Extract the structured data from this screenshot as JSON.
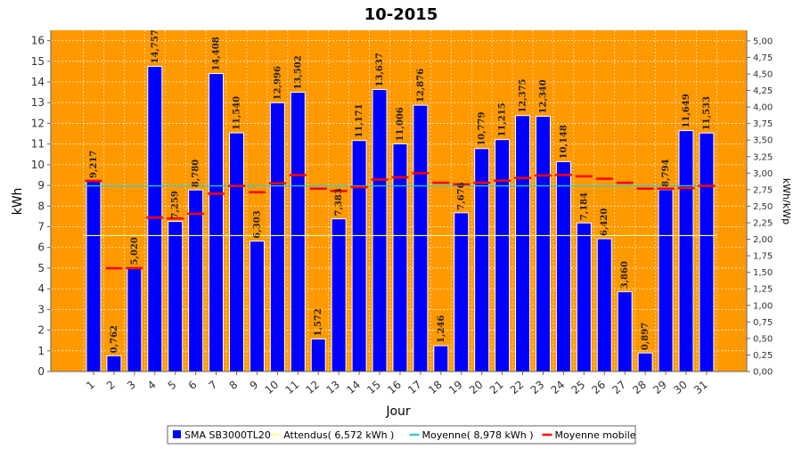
{
  "chart_data": {
    "type": "bar",
    "title": "10-2015",
    "xlabel": "Jour",
    "ylabel": "kWh",
    "y2label": "kWh/kWp",
    "ylim": [
      0,
      16.5
    ],
    "y2lim": [
      0,
      5.16
    ],
    "y_ticks": [
      "0",
      "1",
      "2",
      "3",
      "4",
      "5",
      "6",
      "7",
      "8",
      "9",
      "10",
      "11",
      "12",
      "13",
      "14",
      "15",
      "16"
    ],
    "y2_ticks": [
      "0,00",
      "0,25",
      "0,50",
      "0,75",
      "1,00",
      "1,25",
      "1,50",
      "1,75",
      "2,00",
      "2,25",
      "2,50",
      "2,75",
      "3,00",
      "3,25",
      "3,50",
      "3,75",
      "4,00",
      "4,25",
      "4,50",
      "4,75",
      "5,00"
    ],
    "categories": [
      "1",
      "2",
      "3",
      "4",
      "5",
      "6",
      "7",
      "8",
      "9",
      "10",
      "11",
      "12",
      "13",
      "14",
      "15",
      "16",
      "17",
      "18",
      "19",
      "20",
      "21",
      "22",
      "23",
      "24",
      "25",
      "26",
      "27",
      "28",
      "29",
      "30",
      "31"
    ],
    "plot_background": "#FF9900",
    "grid": true,
    "legend_position": "bottom",
    "series": [
      {
        "name": "SMA SB3000TL20",
        "kind": "bar",
        "color": "#0000FF",
        "values": [
          9.217,
          0.762,
          5.02,
          14.757,
          7.259,
          8.78,
          14.408,
          11.54,
          6.303,
          12.996,
          13.502,
          1.572,
          7.383,
          11.171,
          13.637,
          11.006,
          12.876,
          1.246,
          7.676,
          10.779,
          11.215,
          12.375,
          12.34,
          10.148,
          7.184,
          6.42,
          3.86,
          0.897,
          8.794,
          11.649,
          11.533
        ],
        "labels": [
          "9,217",
          "0,762",
          "5,020",
          "14,757",
          "7,259",
          "8,780",
          "14,408",
          "11,540",
          "6,303",
          "12,996",
          "13,502",
          "1,572",
          "7,383",
          "11,171",
          "13,637",
          "11,006",
          "12,876",
          "1,246",
          "7,676",
          "10,779",
          "11,215",
          "12,375",
          "12,340",
          "10,148",
          "7,184",
          "6,420",
          "3,860",
          "0,897",
          "8,794",
          "11,649",
          "11,533"
        ]
      },
      {
        "name": "Attendus( 6,572 kWh )",
        "kind": "hline",
        "color": "#FFFF99",
        "value": 6.572
      },
      {
        "name": "Moyenne( 8,978 kWh )",
        "kind": "hline",
        "color": "#33CCCC",
        "value": 8.978
      },
      {
        "name": "Moyenne mobile",
        "kind": "step",
        "color": "#FF0000",
        "values": [
          9.22,
          4.99,
          5.0,
          7.44,
          7.4,
          7.63,
          8.6,
          8.97,
          8.67,
          9.1,
          9.5,
          8.84,
          8.73,
          8.92,
          9.28,
          9.39,
          9.59,
          9.13,
          9.05,
          9.13,
          9.23,
          9.36,
          9.48,
          9.51,
          9.44,
          9.32,
          9.13,
          8.84,
          8.84,
          8.87,
          8.97
        ]
      }
    ]
  }
}
